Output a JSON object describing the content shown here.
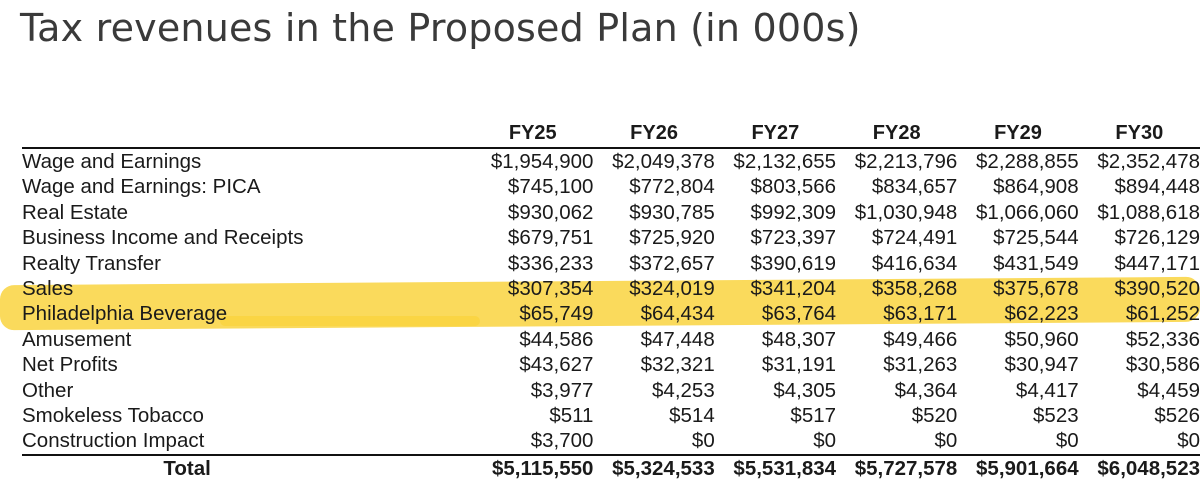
{
  "title": "Tax revenues in the Proposed Plan (in 000s)",
  "colors": {
    "highlight": "#f9d33f",
    "title": "#3a3a3a",
    "text": "#1a1a1a"
  },
  "columns": [
    "FY25",
    "FY26",
    "FY27",
    "FY28",
    "FY29",
    "FY30"
  ],
  "rows": [
    {
      "label": "Wage and Earnings",
      "values": [
        "$1,954,900",
        "$2,049,378",
        "$2,132,655",
        "$2,213,796",
        "$2,288,855",
        "$2,352,478"
      ]
    },
    {
      "label": "Wage and Earnings: PICA",
      "values": [
        "$745,100",
        "$772,804",
        "$803,566",
        "$834,657",
        "$864,908",
        "$894,448"
      ]
    },
    {
      "label": "Real Estate",
      "values": [
        "$930,062",
        "$930,785",
        "$992,309",
        "$1,030,948",
        "$1,066,060",
        "$1,088,618"
      ]
    },
    {
      "label": "Business Income and Receipts",
      "values": [
        "$679,751",
        "$725,920",
        "$723,397",
        "$724,491",
        "$725,544",
        "$726,129"
      ]
    },
    {
      "label": "Realty Transfer",
      "values": [
        "$336,233",
        "$372,657",
        "$390,619",
        "$416,634",
        "$431,549",
        "$447,171"
      ]
    },
    {
      "label": "Sales",
      "values": [
        "$307,354",
        "$324,019",
        "$341,204",
        "$358,268",
        "$375,678",
        "$390,520"
      ]
    },
    {
      "label": "Philadelphia Beverage",
      "values": [
        "$65,749",
        "$64,434",
        "$63,764",
        "$63,171",
        "$62,223",
        "$61,252"
      ]
    },
    {
      "label": "Amusement",
      "values": [
        "$44,586",
        "$47,448",
        "$48,307",
        "$49,466",
        "$50,960",
        "$52,336"
      ]
    },
    {
      "label": "Net Profits",
      "values": [
        "$43,627",
        "$32,321",
        "$31,191",
        "$31,263",
        "$30,947",
        "$30,586"
      ]
    },
    {
      "label": "Other",
      "values": [
        "$3,977",
        "$4,253",
        "$4,305",
        "$4,364",
        "$4,417",
        "$4,459"
      ]
    },
    {
      "label": "Smokeless Tobacco",
      "values": [
        "$511",
        "$514",
        "$517",
        "$520",
        "$523",
        "$526"
      ]
    },
    {
      "label": "Construction Impact",
      "values": [
        "$3,700",
        "$0",
        "$0",
        "$0",
        "$0",
        "$0"
      ]
    }
  ],
  "total": {
    "label": "Total",
    "values": [
      "$5,115,550",
      "$5,324,533",
      "$5,531,834",
      "$5,727,578",
      "$5,901,664",
      "$6,048,523"
    ]
  }
}
